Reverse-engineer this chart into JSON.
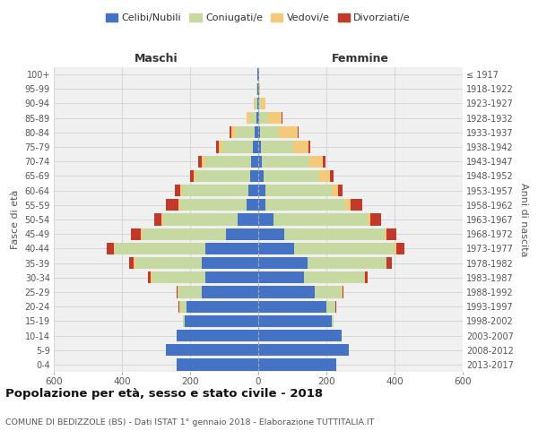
{
  "age_groups": [
    "0-4",
    "5-9",
    "10-14",
    "15-19",
    "20-24",
    "25-29",
    "30-34",
    "35-39",
    "40-44",
    "45-49",
    "50-54",
    "55-59",
    "60-64",
    "65-69",
    "70-74",
    "75-79",
    "80-84",
    "85-89",
    "90-94",
    "95-99",
    "100+"
  ],
  "birth_years": [
    "2013-2017",
    "2008-2012",
    "2003-2007",
    "1998-2002",
    "1993-1997",
    "1988-1992",
    "1983-1987",
    "1978-1982",
    "1973-1977",
    "1968-1972",
    "1963-1967",
    "1958-1962",
    "1953-1957",
    "1948-1952",
    "1943-1947",
    "1938-1942",
    "1933-1937",
    "1928-1932",
    "1923-1927",
    "1918-1922",
    "≤ 1917"
  ],
  "males": {
    "celibe": [
      240,
      270,
      240,
      215,
      210,
      165,
      155,
      165,
      155,
      95,
      60,
      35,
      30,
      25,
      20,
      15,
      10,
      5,
      2,
      2,
      2
    ],
    "coniugato": [
      0,
      0,
      0,
      5,
      20,
      70,
      155,
      195,
      265,
      245,
      220,
      195,
      195,
      160,
      135,
      90,
      55,
      20,
      8,
      3,
      1
    ],
    "vedovo": [
      0,
      0,
      0,
      0,
      2,
      2,
      5,
      5,
      5,
      5,
      5,
      5,
      5,
      5,
      10,
      10,
      15,
      10,
      3,
      1,
      0
    ],
    "divorziato": [
      0,
      0,
      0,
      0,
      2,
      3,
      8,
      15,
      20,
      30,
      20,
      35,
      15,
      10,
      12,
      8,
      5,
      0,
      0,
      0,
      0
    ]
  },
  "females": {
    "nubile": [
      230,
      265,
      245,
      215,
      200,
      165,
      135,
      145,
      105,
      75,
      45,
      20,
      20,
      15,
      10,
      8,
      5,
      3,
      2,
      2,
      2
    ],
    "coniugata": [
      0,
      0,
      0,
      5,
      25,
      80,
      175,
      230,
      295,
      295,
      275,
      235,
      195,
      165,
      140,
      95,
      55,
      25,
      5,
      1,
      0
    ],
    "vedova": [
      0,
      0,
      0,
      0,
      2,
      2,
      2,
      2,
      5,
      5,
      10,
      15,
      20,
      30,
      40,
      45,
      55,
      40,
      15,
      3,
      1
    ],
    "divorziata": [
      0,
      0,
      0,
      0,
      2,
      3,
      8,
      15,
      25,
      30,
      30,
      35,
      12,
      10,
      8,
      5,
      3,
      2,
      0,
      0,
      0
    ]
  },
  "colors": {
    "celibe": "#4472c4",
    "coniugato": "#c5d9a0",
    "vedovo": "#f5c97a",
    "divorziato": "#c0392b"
  },
  "legend_labels": [
    "Celibi/Nubili",
    "Coniugati/e",
    "Vedovi/e",
    "Divorziati/e"
  ],
  "title": "Popolazione per età, sesso e stato civile - 2018",
  "subtitle": "COMUNE DI BEDIZZOLE (BS) - Dati ISTAT 1° gennaio 2018 - Elaborazione TUTTITALIA.IT",
  "xlabel_left": "Maschi",
  "xlabel_right": "Femmine",
  "ylabel_left": "Fasce di età",
  "ylabel_right": "Anni di nascita",
  "xlim": 600,
  "bg_color": "#ffffff",
  "plot_bg_color": "#f0f0f0"
}
